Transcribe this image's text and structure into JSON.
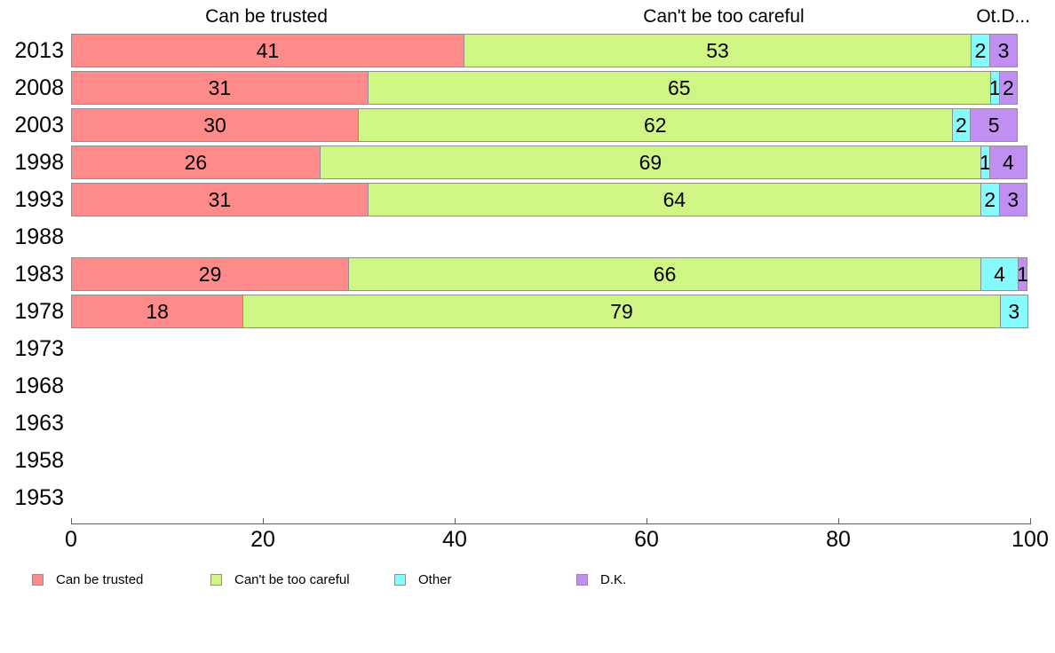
{
  "chart_data": {
    "type": "bar",
    "stacked": true,
    "orientation": "horizontal",
    "headers": [
      "Can be trusted",
      "Can't be too careful",
      "Ot.D..."
    ],
    "categories": [
      "2013",
      "2008",
      "2003",
      "1998",
      "1993",
      "1988",
      "1983",
      "1978",
      "1973",
      "1968",
      "1963",
      "1958",
      "1953"
    ],
    "series": [
      {
        "name": "Can be trusted",
        "color": "#ff8a8a",
        "values": [
          41,
          31,
          30,
          26,
          31,
          null,
          29,
          18,
          null,
          null,
          null,
          null,
          null
        ]
      },
      {
        "name": "Can't be too careful",
        "color": "#cff584",
        "values": [
          53,
          65,
          62,
          69,
          64,
          null,
          66,
          79,
          null,
          null,
          null,
          null,
          null
        ]
      },
      {
        "name": "Other",
        "color": "#86fbfd",
        "values": [
          2,
          1,
          2,
          1,
          2,
          null,
          4,
          3,
          null,
          null,
          null,
          null,
          null
        ]
      },
      {
        "name": "D.K.",
        "color": "#c18ff2",
        "values": [
          3,
          2,
          5,
          4,
          3,
          null,
          1,
          null,
          null,
          null,
          null,
          null,
          null
        ]
      }
    ],
    "xlim": [
      0,
      100
    ],
    "xticks": [
      "0",
      "20",
      "40",
      "60",
      "80",
      "100"
    ],
    "legend": [
      {
        "label": "Can be trusted",
        "color": "#ff8a8a"
      },
      {
        "label": "Can't be too careful",
        "color": "#cff584"
      },
      {
        "label": "Other",
        "color": "#86fbfd"
      },
      {
        "label": "D.K.",
        "color": "#c18ff2"
      }
    ]
  }
}
